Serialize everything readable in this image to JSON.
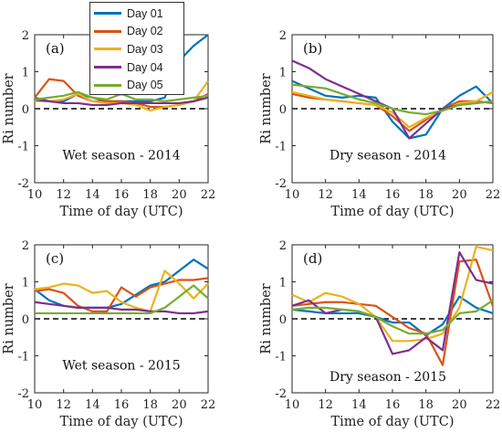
{
  "chart_data": [
    {
      "type": "line",
      "panel_label": "(a)",
      "annotation": "Wet season - 2014",
      "xlabel": "Time of day (UTC)",
      "ylabel": "Ri number",
      "xlim": [
        10,
        22
      ],
      "ylim": [
        -2,
        2
      ],
      "xticks": [
        10,
        12,
        14,
        16,
        18,
        20,
        22
      ],
      "yticks": [
        -2,
        -1,
        0,
        1,
        2
      ],
      "reference_line": 0,
      "x": [
        10,
        11,
        12,
        13,
        14,
        15,
        16,
        17,
        18,
        19,
        20,
        21,
        22
      ],
      "series": [
        {
          "name": "Day 01",
          "values": [
            0.3,
            0.2,
            0.2,
            0.4,
            0.3,
            0.2,
            0.2,
            0.2,
            0.2,
            0.3,
            1.3,
            1.7,
            2.2
          ]
        },
        {
          "name": "Day 02",
          "values": [
            0.3,
            0.8,
            0.75,
            0.35,
            0.2,
            0.2,
            0.2,
            0.15,
            0.05,
            0.05,
            0.1,
            0.2,
            0.4
          ]
        },
        {
          "name": "Day 03",
          "values": [
            0.2,
            0.2,
            0.25,
            0.4,
            0.2,
            0.15,
            0.15,
            0.1,
            -0.05,
            0.05,
            0.1,
            0.2,
            0.75
          ]
        },
        {
          "name": "Day 04",
          "values": [
            0.25,
            0.2,
            0.15,
            0.15,
            0.1,
            0.1,
            0.15,
            0.15,
            0.15,
            0.15,
            0.15,
            0.2,
            0.3
          ]
        },
        {
          "name": "Day 05",
          "values": [
            0.25,
            0.3,
            0.35,
            0.45,
            0.3,
            0.25,
            0.4,
            0.25,
            0.25,
            0.2,
            0.25,
            0.3,
            0.35
          ]
        }
      ]
    },
    {
      "type": "line",
      "panel_label": "(b)",
      "annotation": "Dry season - 2014",
      "xlabel": "Time of day (UTC)",
      "ylabel": "Ri number",
      "xlim": [
        10,
        22
      ],
      "ylim": [
        -2,
        2
      ],
      "xticks": [
        10,
        12,
        14,
        16,
        18,
        20,
        22
      ],
      "yticks": [
        -2,
        -1,
        0,
        1,
        2
      ],
      "reference_line": 0,
      "x": [
        10,
        11,
        12,
        13,
        14,
        15,
        16,
        17,
        18,
        19,
        20,
        21,
        22
      ],
      "series": [
        {
          "name": "Day 01",
          "values": [
            0.75,
            0.55,
            0.35,
            0.3,
            0.35,
            0.3,
            -0.35,
            -0.8,
            -0.7,
            0.0,
            0.35,
            0.6,
            0.15
          ]
        },
        {
          "name": "Day 02",
          "values": [
            0.4,
            0.3,
            0.25,
            0.2,
            0.15,
            0.1,
            -0.2,
            -0.6,
            -0.3,
            0.0,
            0.2,
            0.2,
            0.15
          ]
        },
        {
          "name": "Day 03",
          "values": [
            0.45,
            0.35,
            0.25,
            0.2,
            0.15,
            0.1,
            -0.1,
            -0.5,
            -0.25,
            -0.05,
            0.15,
            0.2,
            0.45
          ]
        },
        {
          "name": "Day 04",
          "values": [
            1.3,
            1.1,
            0.8,
            0.6,
            0.4,
            0.2,
            0.0,
            -0.8,
            -0.4,
            0.0,
            0.1,
            0.15,
            0.2
          ]
        },
        {
          "name": "Day 05",
          "values": [
            0.65,
            0.6,
            0.55,
            0.4,
            0.25,
            0.15,
            0.0,
            -0.1,
            -0.15,
            -0.05,
            0.1,
            0.15,
            0.2
          ]
        }
      ]
    },
    {
      "type": "line",
      "panel_label": "(c)",
      "annotation": "Wet season - 2015",
      "xlabel": "Time of day (UTC)",
      "ylabel": "Ri number",
      "xlim": [
        10,
        22
      ],
      "ylim": [
        -2,
        2
      ],
      "xticks": [
        10,
        12,
        14,
        16,
        18,
        20,
        22
      ],
      "yticks": [
        -2,
        -1,
        0,
        1,
        2
      ],
      "reference_line": 0,
      "x": [
        10,
        11,
        12,
        13,
        14,
        15,
        16,
        17,
        18,
        19,
        20,
        21,
        22
      ],
      "series": [
        {
          "name": "Day 01",
          "values": [
            0.8,
            0.5,
            0.35,
            0.3,
            0.3,
            0.3,
            0.4,
            0.65,
            0.9,
            1.0,
            1.3,
            1.6,
            1.35
          ]
        },
        {
          "name": "Day 02",
          "values": [
            0.75,
            0.8,
            0.7,
            0.35,
            0.2,
            0.2,
            0.85,
            0.6,
            0.85,
            0.95,
            1.05,
            1.05,
            1.1
          ]
        },
        {
          "name": "Day 03",
          "values": [
            0.8,
            0.85,
            0.95,
            0.9,
            0.7,
            0.75,
            0.45,
            0.3,
            0.2,
            1.3,
            0.95,
            0.55,
            0.95
          ]
        },
        {
          "name": "Day 04",
          "values": [
            0.45,
            0.4,
            0.35,
            0.3,
            0.3,
            0.3,
            0.25,
            0.25,
            0.2,
            0.2,
            0.15,
            0.15,
            0.2
          ]
        },
        {
          "name": "Day 05",
          "values": [
            0.15,
            0.15,
            0.15,
            0.15,
            0.15,
            0.15,
            0.15,
            0.15,
            0.15,
            0.3,
            0.6,
            0.9,
            0.55
          ]
        }
      ]
    },
    {
      "type": "line",
      "panel_label": "(d)",
      "annotation": "Dry season - 2015",
      "xlabel": "Time of day (UTC)",
      "ylabel": "Ri number",
      "xlim": [
        10,
        22
      ],
      "ylim": [
        -2,
        2
      ],
      "xticks": [
        10,
        12,
        14,
        16,
        18,
        20,
        22
      ],
      "yticks": [
        -2,
        -1,
        0,
        1,
        2
      ],
      "reference_line": 0,
      "x": [
        10,
        11,
        12,
        13,
        14,
        15,
        16,
        17,
        18,
        19,
        20,
        21,
        22
      ],
      "series": [
        {
          "name": "Day 01",
          "values": [
            0.25,
            0.2,
            0.15,
            0.15,
            0.15,
            0.05,
            -0.1,
            -0.1,
            -0.45,
            -0.15,
            0.6,
            0.3,
            0.15
          ]
        },
        {
          "name": "Day 02",
          "values": [
            0.35,
            0.4,
            0.45,
            0.45,
            0.4,
            0.35,
            0.05,
            -0.25,
            -0.4,
            -1.25,
            1.55,
            1.6,
            0.35
          ]
        },
        {
          "name": "Day 03",
          "values": [
            0.65,
            0.45,
            0.7,
            0.6,
            0.4,
            0.05,
            -0.6,
            -0.6,
            -0.55,
            -0.4,
            0.3,
            1.95,
            1.85
          ]
        },
        {
          "name": "Day 04",
          "values": [
            0.35,
            0.5,
            0.15,
            0.25,
            0.2,
            0.05,
            -0.95,
            -0.85,
            -0.5,
            -0.85,
            1.8,
            1.05,
            0.95
          ]
        },
        {
          "name": "Day 05",
          "values": [
            0.25,
            0.3,
            0.3,
            0.25,
            0.2,
            0.05,
            -0.2,
            -0.4,
            -0.4,
            -0.3,
            0.15,
            0.2,
            0.5
          ]
        }
      ]
    }
  ],
  "legend": [
    {
      "label": "Day 01",
      "color": "#0072BD"
    },
    {
      "label": "Day 02",
      "color": "#D95319"
    },
    {
      "label": "Day 03",
      "color": "#EDB120"
    },
    {
      "label": "Day 04",
      "color": "#7E2F8E"
    },
    {
      "label": "Day 05",
      "color": "#77AC30"
    }
  ]
}
